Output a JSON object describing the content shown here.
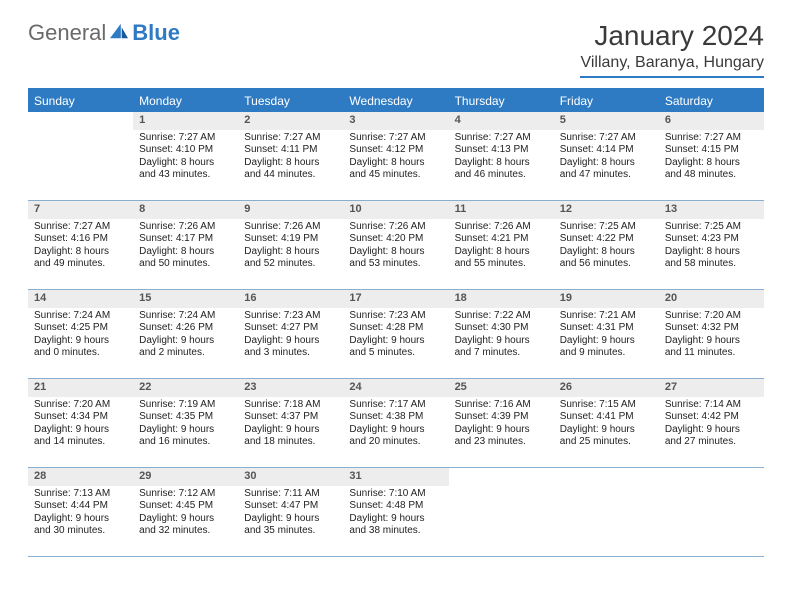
{
  "brand": {
    "part1": "General",
    "part2": "Blue",
    "logo_color": "#2f7bc3",
    "text_color": "#6a6a6a"
  },
  "header": {
    "month": "January 2024",
    "location": "Villany, Baranya, Hungary"
  },
  "colors": {
    "accent": "#2f7bc3",
    "header_bg": "#2f7bc3",
    "daynum_bg": "#ededed",
    "border": "#8aaed0"
  },
  "days_of_week": [
    "Sunday",
    "Monday",
    "Tuesday",
    "Wednesday",
    "Thursday",
    "Friday",
    "Saturday"
  ],
  "weeks": [
    [
      {
        "n": "",
        "sr": "",
        "ss": "",
        "dl": ""
      },
      {
        "n": "1",
        "sr": "Sunrise: 7:27 AM",
        "ss": "Sunset: 4:10 PM",
        "dl": "Daylight: 8 hours and 43 minutes."
      },
      {
        "n": "2",
        "sr": "Sunrise: 7:27 AM",
        "ss": "Sunset: 4:11 PM",
        "dl": "Daylight: 8 hours and 44 minutes."
      },
      {
        "n": "3",
        "sr": "Sunrise: 7:27 AM",
        "ss": "Sunset: 4:12 PM",
        "dl": "Daylight: 8 hours and 45 minutes."
      },
      {
        "n": "4",
        "sr": "Sunrise: 7:27 AM",
        "ss": "Sunset: 4:13 PM",
        "dl": "Daylight: 8 hours and 46 minutes."
      },
      {
        "n": "5",
        "sr": "Sunrise: 7:27 AM",
        "ss": "Sunset: 4:14 PM",
        "dl": "Daylight: 8 hours and 47 minutes."
      },
      {
        "n": "6",
        "sr": "Sunrise: 7:27 AM",
        "ss": "Sunset: 4:15 PM",
        "dl": "Daylight: 8 hours and 48 minutes."
      }
    ],
    [
      {
        "n": "7",
        "sr": "Sunrise: 7:27 AM",
        "ss": "Sunset: 4:16 PM",
        "dl": "Daylight: 8 hours and 49 minutes."
      },
      {
        "n": "8",
        "sr": "Sunrise: 7:26 AM",
        "ss": "Sunset: 4:17 PM",
        "dl": "Daylight: 8 hours and 50 minutes."
      },
      {
        "n": "9",
        "sr": "Sunrise: 7:26 AM",
        "ss": "Sunset: 4:19 PM",
        "dl": "Daylight: 8 hours and 52 minutes."
      },
      {
        "n": "10",
        "sr": "Sunrise: 7:26 AM",
        "ss": "Sunset: 4:20 PM",
        "dl": "Daylight: 8 hours and 53 minutes."
      },
      {
        "n": "11",
        "sr": "Sunrise: 7:26 AM",
        "ss": "Sunset: 4:21 PM",
        "dl": "Daylight: 8 hours and 55 minutes."
      },
      {
        "n": "12",
        "sr": "Sunrise: 7:25 AM",
        "ss": "Sunset: 4:22 PM",
        "dl": "Daylight: 8 hours and 56 minutes."
      },
      {
        "n": "13",
        "sr": "Sunrise: 7:25 AM",
        "ss": "Sunset: 4:23 PM",
        "dl": "Daylight: 8 hours and 58 minutes."
      }
    ],
    [
      {
        "n": "14",
        "sr": "Sunrise: 7:24 AM",
        "ss": "Sunset: 4:25 PM",
        "dl": "Daylight: 9 hours and 0 minutes."
      },
      {
        "n": "15",
        "sr": "Sunrise: 7:24 AM",
        "ss": "Sunset: 4:26 PM",
        "dl": "Daylight: 9 hours and 2 minutes."
      },
      {
        "n": "16",
        "sr": "Sunrise: 7:23 AM",
        "ss": "Sunset: 4:27 PM",
        "dl": "Daylight: 9 hours and 3 minutes."
      },
      {
        "n": "17",
        "sr": "Sunrise: 7:23 AM",
        "ss": "Sunset: 4:28 PM",
        "dl": "Daylight: 9 hours and 5 minutes."
      },
      {
        "n": "18",
        "sr": "Sunrise: 7:22 AM",
        "ss": "Sunset: 4:30 PM",
        "dl": "Daylight: 9 hours and 7 minutes."
      },
      {
        "n": "19",
        "sr": "Sunrise: 7:21 AM",
        "ss": "Sunset: 4:31 PM",
        "dl": "Daylight: 9 hours and 9 minutes."
      },
      {
        "n": "20",
        "sr": "Sunrise: 7:20 AM",
        "ss": "Sunset: 4:32 PM",
        "dl": "Daylight: 9 hours and 11 minutes."
      }
    ],
    [
      {
        "n": "21",
        "sr": "Sunrise: 7:20 AM",
        "ss": "Sunset: 4:34 PM",
        "dl": "Daylight: 9 hours and 14 minutes."
      },
      {
        "n": "22",
        "sr": "Sunrise: 7:19 AM",
        "ss": "Sunset: 4:35 PM",
        "dl": "Daylight: 9 hours and 16 minutes."
      },
      {
        "n": "23",
        "sr": "Sunrise: 7:18 AM",
        "ss": "Sunset: 4:37 PM",
        "dl": "Daylight: 9 hours and 18 minutes."
      },
      {
        "n": "24",
        "sr": "Sunrise: 7:17 AM",
        "ss": "Sunset: 4:38 PM",
        "dl": "Daylight: 9 hours and 20 minutes."
      },
      {
        "n": "25",
        "sr": "Sunrise: 7:16 AM",
        "ss": "Sunset: 4:39 PM",
        "dl": "Daylight: 9 hours and 23 minutes."
      },
      {
        "n": "26",
        "sr": "Sunrise: 7:15 AM",
        "ss": "Sunset: 4:41 PM",
        "dl": "Daylight: 9 hours and 25 minutes."
      },
      {
        "n": "27",
        "sr": "Sunrise: 7:14 AM",
        "ss": "Sunset: 4:42 PM",
        "dl": "Daylight: 9 hours and 27 minutes."
      }
    ],
    [
      {
        "n": "28",
        "sr": "Sunrise: 7:13 AM",
        "ss": "Sunset: 4:44 PM",
        "dl": "Daylight: 9 hours and 30 minutes."
      },
      {
        "n": "29",
        "sr": "Sunrise: 7:12 AM",
        "ss": "Sunset: 4:45 PM",
        "dl": "Daylight: 9 hours and 32 minutes."
      },
      {
        "n": "30",
        "sr": "Sunrise: 7:11 AM",
        "ss": "Sunset: 4:47 PM",
        "dl": "Daylight: 9 hours and 35 minutes."
      },
      {
        "n": "31",
        "sr": "Sunrise: 7:10 AM",
        "ss": "Sunset: 4:48 PM",
        "dl": "Daylight: 9 hours and 38 minutes."
      },
      {
        "n": "",
        "sr": "",
        "ss": "",
        "dl": ""
      },
      {
        "n": "",
        "sr": "",
        "ss": "",
        "dl": ""
      },
      {
        "n": "",
        "sr": "",
        "ss": "",
        "dl": ""
      }
    ]
  ]
}
